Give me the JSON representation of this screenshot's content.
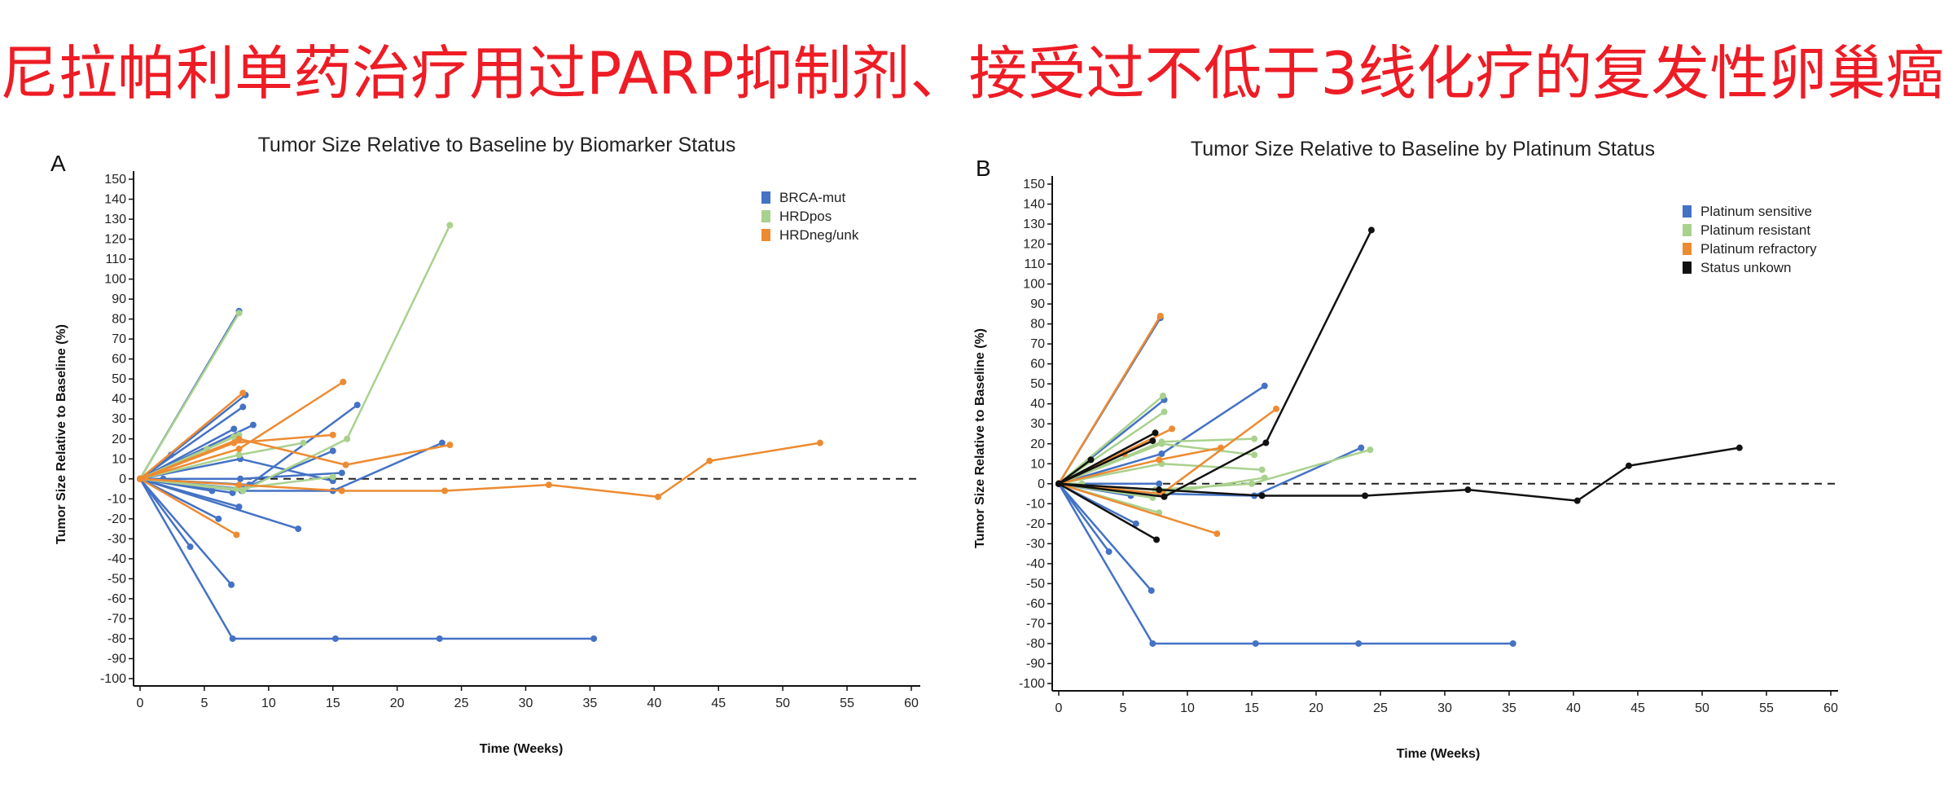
{
  "headline": "尼拉帕利单药治疗用过PARP抑制剂、接受过不低于3线化疗的复发性卵巢癌",
  "chart_data": [
    {
      "panel": "A",
      "type": "line",
      "title": "Tumor Size Relative to Baseline by Biomarker Status",
      "xlabel": "Time (Weeks)",
      "ylabel": "Tumor Size Relative to Baseline (%)",
      "xlim": [
        0,
        60
      ],
      "ylim": [
        -100,
        150
      ],
      "xticks": [
        0,
        5,
        10,
        15,
        20,
        25,
        30,
        35,
        40,
        45,
        50,
        55,
        60
      ],
      "yticks": [
        150,
        140,
        130,
        120,
        110,
        100,
        90,
        80,
        70,
        60,
        50,
        40,
        30,
        20,
        10,
        0,
        -10,
        -20,
        -30,
        -40,
        -50,
        -60,
        -70,
        -80,
        -90,
        -100
      ],
      "reference_line": {
        "y": 0,
        "style": "dashed"
      },
      "grid": false,
      "legend_position": "top-right",
      "groups": [
        {
          "name": "BRCA-mut",
          "color": "#4472c4"
        },
        {
          "name": "HRDpos",
          "color": "#a9d18e"
        },
        {
          "name": "HRDneg/unk",
          "color": "#ed8b32"
        }
      ],
      "series": [
        {
          "group": 0,
          "points": [
            [
              0,
              0
            ],
            [
              7.2,
              -80
            ],
            [
              15.2,
              -80
            ],
            [
              23.3,
              -80
            ],
            [
              35.3,
              -80
            ]
          ]
        },
        {
          "group": 0,
          "points": [
            [
              0,
              0
            ],
            [
              7.1,
              -53
            ]
          ]
        },
        {
          "group": 0,
          "points": [
            [
              0,
              0
            ],
            [
              3.9,
              -34
            ]
          ]
        },
        {
          "group": 0,
          "points": [
            [
              0,
              0
            ],
            [
              6.1,
              -20
            ]
          ]
        },
        {
          "group": 0,
          "points": [
            [
              0,
              0
            ],
            [
              12.3,
              -25
            ]
          ]
        },
        {
          "group": 0,
          "points": [
            [
              0,
              0
            ],
            [
              7.7,
              -14
            ]
          ]
        },
        {
          "group": 0,
          "points": [
            [
              0,
              0
            ],
            [
              7.2,
              -7
            ]
          ]
        },
        {
          "group": 0,
          "points": [
            [
              0,
              0
            ],
            [
              5.6,
              -6
            ]
          ]
        },
        {
          "group": 0,
          "points": [
            [
              0,
              0
            ],
            [
              1.8,
              0
            ]
          ]
        },
        {
          "group": 0,
          "points": [
            [
              0,
              0
            ],
            [
              7.7,
              84
            ]
          ]
        },
        {
          "group": 0,
          "points": [
            [
              0,
              0
            ],
            [
              8.2,
              42
            ]
          ]
        },
        {
          "group": 0,
          "points": [
            [
              0,
              0
            ],
            [
              8.0,
              36
            ]
          ]
        },
        {
          "group": 0,
          "points": [
            [
              0,
              0
            ],
            [
              7.3,
              25
            ]
          ]
        },
        {
          "group": 0,
          "points": [
            [
              0,
              0
            ],
            [
              8.8,
              27
            ]
          ]
        },
        {
          "group": 0,
          "points": [
            [
              0,
              0
            ],
            [
              2.4,
              12
            ]
          ]
        },
        {
          "group": 0,
          "points": [
            [
              0,
              0
            ],
            [
              7.8,
              10
            ],
            [
              15.0,
              -1
            ]
          ]
        },
        {
          "group": 0,
          "points": [
            [
              0,
              0
            ],
            [
              7.8,
              0
            ],
            [
              15.7,
              3
            ]
          ]
        },
        {
          "group": 0,
          "points": [
            [
              0,
              0
            ],
            [
              8.0,
              -5
            ],
            [
              15.0,
              14
            ]
          ]
        },
        {
          "group": 0,
          "points": [
            [
              0,
              0
            ],
            [
              8.5,
              -3
            ],
            [
              16.9,
              37
            ]
          ]
        },
        {
          "group": 0,
          "points": [
            [
              0,
              0
            ],
            [
              7.9,
              -6
            ],
            [
              15.0,
              -6
            ],
            [
              23.5,
              18
            ]
          ]
        },
        {
          "group": 1,
          "points": [
            [
              0,
              0
            ],
            [
              7.7,
              83
            ]
          ]
        },
        {
          "group": 1,
          "points": [
            [
              0,
              0
            ],
            [
              8.0,
              -6
            ],
            [
              16.1,
              20
            ],
            [
              24.1,
              127
            ]
          ]
        },
        {
          "group": 1,
          "points": [
            [
              0,
              0
            ],
            [
              7.7,
              12
            ],
            [
              12.7,
              18
            ]
          ]
        },
        {
          "group": 1,
          "points": [
            [
              0,
              0
            ],
            [
              7.3,
              21
            ]
          ]
        },
        {
          "group": 1,
          "points": [
            [
              0,
              0
            ],
            [
              5.2,
              15
            ]
          ]
        },
        {
          "group": 1,
          "points": [
            [
              0,
              0
            ],
            [
              7.7,
              22
            ]
          ]
        },
        {
          "group": 1,
          "points": [
            [
              0,
              0
            ],
            [
              7.5,
              -5
            ],
            [
              15.0,
              1
            ]
          ]
        },
        {
          "group": 2,
          "points": [
            [
              0,
              0
            ],
            [
              8.0,
              43
            ]
          ]
        },
        {
          "group": 2,
          "points": [
            [
              0,
              0
            ],
            [
              7.7,
              15
            ],
            [
              15.8,
              48.5
            ]
          ]
        },
        {
          "group": 2,
          "points": [
            [
              0,
              0
            ],
            [
              7.7,
              20
            ],
            [
              16.0,
              7
            ],
            [
              24.1,
              17
            ]
          ]
        },
        {
          "group": 2,
          "points": [
            [
              0,
              0
            ],
            [
              7.3,
              18
            ],
            [
              15.0,
              22
            ]
          ]
        },
        {
          "group": 2,
          "points": [
            [
              0,
              0
            ],
            [
              7.5,
              -28
            ]
          ]
        },
        {
          "group": 2,
          "points": [
            [
              0,
              0
            ],
            [
              7.7,
              -3
            ],
            [
              15.7,
              -6
            ],
            [
              23.7,
              -6
            ],
            [
              31.8,
              -3
            ],
            [
              40.3,
              -9
            ],
            [
              44.3,
              9
            ],
            [
              52.9,
              18
            ]
          ]
        }
      ]
    },
    {
      "panel": "B",
      "type": "line",
      "title": "Tumor Size Relative to Baseline by Platinum Status",
      "xlabel": "Time (Weeks)",
      "ylabel": "Tumor Size Relative to Baseline (%)",
      "xlim": [
        0,
        60
      ],
      "ylim": [
        -100,
        150
      ],
      "xticks": [
        0,
        5,
        10,
        15,
        20,
        25,
        30,
        35,
        40,
        45,
        50,
        55,
        60
      ],
      "yticks": [
        150,
        140,
        130,
        120,
        110,
        100,
        90,
        80,
        70,
        60,
        50,
        40,
        30,
        20,
        10,
        0,
        -10,
        -20,
        -30,
        -40,
        -50,
        -60,
        -70,
        -80,
        -90,
        -100
      ],
      "reference_line": {
        "y": 0,
        "style": "dashed"
      },
      "grid": false,
      "legend_position": "top-right",
      "groups": [
        {
          "name": "Platinum sensitive",
          "color": "#4472c4"
        },
        {
          "name": "Platinum resistant",
          "color": "#a9d18e"
        },
        {
          "name": "Platinum refractory",
          "color": "#ed8b32"
        },
        {
          "name": "Status unkown",
          "color": "#111111"
        }
      ],
      "series": [
        {
          "group": 0,
          "points": [
            [
              0,
              0
            ],
            [
              7.3,
              -80
            ],
            [
              15.3,
              -80
            ],
            [
              23.3,
              -80
            ],
            [
              35.3,
              -80
            ]
          ]
        },
        {
          "group": 0,
          "points": [
            [
              0,
              0
            ],
            [
              7.2,
              -53.5
            ]
          ]
        },
        {
          "group": 0,
          "points": [
            [
              0,
              0
            ],
            [
              3.9,
              -34
            ]
          ]
        },
        {
          "group": 0,
          "points": [
            [
              0,
              0
            ],
            [
              6.0,
              -20
            ]
          ]
        },
        {
          "group": 0,
          "points": [
            [
              0,
              0
            ],
            [
              5.6,
              -6
            ]
          ]
        },
        {
          "group": 0,
          "points": [
            [
              0,
              0
            ],
            [
              8.2,
              42
            ]
          ]
        },
        {
          "group": 0,
          "points": [
            [
              0,
              0
            ],
            [
              7.9,
              83
            ]
          ]
        },
        {
          "group": 0,
          "points": [
            [
              0,
              0
            ],
            [
              8.0,
              15
            ],
            [
              16.0,
              49
            ]
          ]
        },
        {
          "group": 0,
          "points": [
            [
              0,
              0
            ],
            [
              7.8,
              0
            ]
          ]
        },
        {
          "group": 0,
          "points": [
            [
              0,
              0
            ],
            [
              7.9,
              -5
            ],
            [
              15.2,
              -6
            ],
            [
              23.5,
              18
            ]
          ]
        },
        {
          "group": 1,
          "points": [
            [
              0,
              0
            ],
            [
              8.1,
              44
            ]
          ]
        },
        {
          "group": 1,
          "points": [
            [
              0,
              0
            ],
            [
              8.2,
              36
            ]
          ]
        },
        {
          "group": 1,
          "points": [
            [
              0,
              0
            ],
            [
              8.0,
              21
            ],
            [
              15.2,
              22.5
            ]
          ]
        },
        {
          "group": 1,
          "points": [
            [
              0,
              0
            ],
            [
              8.0,
              10
            ],
            [
              15.8,
              7
            ]
          ]
        },
        {
          "group": 1,
          "points": [
            [
              0,
              0
            ],
            [
              8.0,
              20
            ],
            [
              15.2,
              14.5
            ]
          ]
        },
        {
          "group": 1,
          "points": [
            [
              0,
              0
            ],
            [
              7.3,
              -7
            ]
          ]
        },
        {
          "group": 1,
          "points": [
            [
              0,
              0
            ],
            [
              7.8,
              -14.5
            ]
          ]
        },
        {
          "group": 1,
          "points": [
            [
              0,
              0
            ],
            [
              1.8,
              0
            ]
          ]
        },
        {
          "group": 1,
          "points": [
            [
              0,
              0
            ],
            [
              8.0,
              -5
            ],
            [
              16.0,
              3
            ]
          ]
        },
        {
          "group": 1,
          "points": [
            [
              0,
              0
            ],
            [
              7.5,
              -3
            ],
            [
              15.0,
              0
            ],
            [
              24.2,
              17
            ]
          ]
        },
        {
          "group": 2,
          "points": [
            [
              0,
              0
            ],
            [
              7.9,
              84
            ]
          ]
        },
        {
          "group": 2,
          "points": [
            [
              0,
              0
            ],
            [
              8.8,
              27.5
            ]
          ]
        },
        {
          "group": 2,
          "points": [
            [
              0,
              0
            ],
            [
              7.8,
              12
            ],
            [
              12.6,
              18
            ]
          ]
        },
        {
          "group": 2,
          "points": [
            [
              0,
              0
            ],
            [
              12.3,
              -25
            ]
          ]
        },
        {
          "group": 2,
          "points": [
            [
              0,
              0
            ],
            [
              8.0,
              -5
            ],
            [
              16.9,
              37.5
            ]
          ]
        },
        {
          "group": 2,
          "points": [
            [
              0,
              0
            ],
            [
              5.1,
              15
            ]
          ]
        },
        {
          "group": 3,
          "points": [
            [
              0,
              0
            ],
            [
              2.5,
              12
            ]
          ]
        },
        {
          "group": 3,
          "points": [
            [
              0,
              0
            ],
            [
              7.5,
              25.5
            ]
          ]
        },
        {
          "group": 3,
          "points": [
            [
              0,
              0
            ],
            [
              7.3,
              21.5
            ]
          ]
        },
        {
          "group": 3,
          "points": [
            [
              0,
              0
            ],
            [
              7.6,
              -28
            ]
          ]
        },
        {
          "group": 3,
          "points": [
            [
              0,
              0
            ],
            [
              8.2,
              -6.5
            ],
            [
              16.1,
              20.5
            ],
            [
              24.3,
              127
            ]
          ]
        },
        {
          "group": 3,
          "points": [
            [
              0,
              0
            ],
            [
              7.8,
              -3
            ],
            [
              15.8,
              -6
            ],
            [
              23.8,
              -6
            ],
            [
              31.8,
              -3
            ],
            [
              40.3,
              -8.5
            ],
            [
              44.3,
              9
            ],
            [
              52.9,
              18
            ]
          ]
        }
      ]
    }
  ]
}
